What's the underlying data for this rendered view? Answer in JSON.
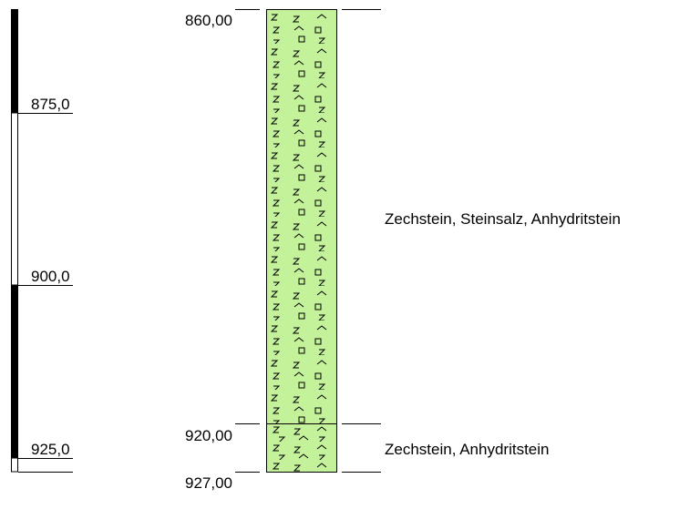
{
  "depth_scale": {
    "labels": [
      "875,0",
      "900,0",
      "925,0"
    ]
  },
  "layers": [
    {
      "top": "860,00",
      "description": "Zechstein, Steinsalz, Anhydritstein"
    },
    {
      "top": "920,00",
      "description": "Zechstein, Anhydritstein"
    }
  ],
  "base": "927,00"
}
